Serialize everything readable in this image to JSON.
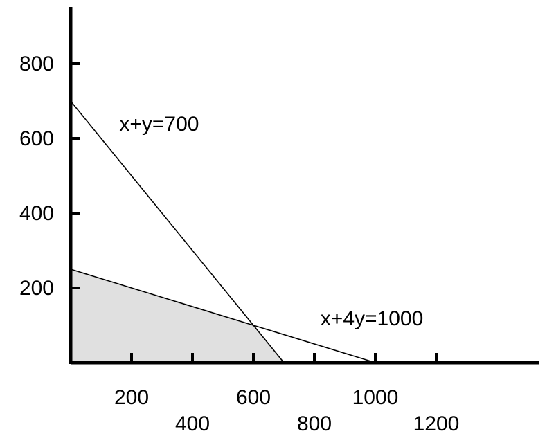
{
  "chart_data": {
    "type": "line",
    "title": "",
    "xlabel": "",
    "ylabel": "",
    "xlim": [
      0,
      1400
    ],
    "ylim": [
      0,
      900
    ],
    "grid": false,
    "legend": "none",
    "x_ticks": [
      200,
      400,
      600,
      800,
      1000,
      1200
    ],
    "x_tick_labels": [
      "200",
      "400",
      "600",
      "800",
      "1000",
      "1200"
    ],
    "y_ticks": [
      200,
      400,
      600,
      800
    ],
    "y_tick_labels": [
      "200",
      "400",
      "600",
      "800"
    ],
    "lines": [
      {
        "label": "x+y=700",
        "points": [
          [
            0,
            700
          ],
          [
            700,
            0
          ]
        ],
        "label_at": [
          160,
          620
        ]
      },
      {
        "label": "x+4y=1000",
        "points": [
          [
            0,
            250
          ],
          [
            1000,
            0
          ]
        ],
        "label_at": [
          820,
          100
        ]
      }
    ],
    "feasible_region": {
      "vertices": [
        [
          0,
          0
        ],
        [
          0,
          250
        ],
        [
          600,
          100
        ],
        [
          700,
          0
        ]
      ],
      "fill": "#e0e0e0"
    }
  }
}
